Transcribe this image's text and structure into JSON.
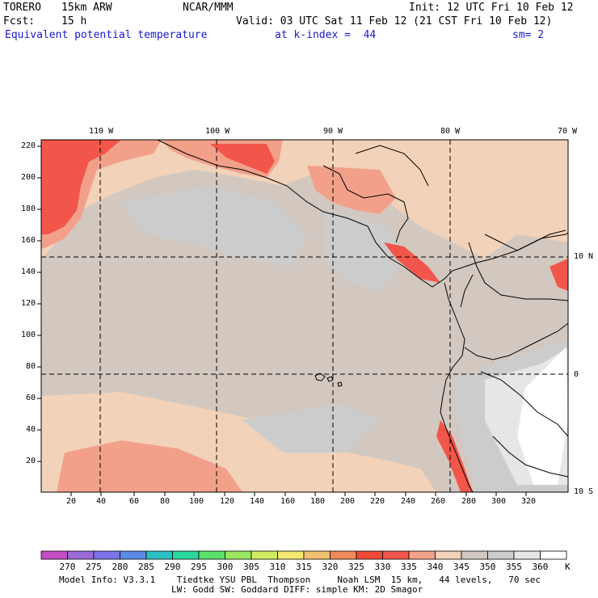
{
  "header": {
    "model": "TORERO",
    "resolution": "15km ARW",
    "org": "NCAR/MMM",
    "init": "Init: 12 UTC Fri 10 Feb 12",
    "fcst_label": "Fcst:",
    "fcst_value": "15 h",
    "valid": "Valid: 03 UTC Sat 11 Feb 12 (21 CST Fri 10 Feb 12)",
    "field": "Equivalent potential temperature",
    "level": "at k-index =  44",
    "smoothing": "sm= 2"
  },
  "axes": {
    "top_lon": [
      "110 W",
      "100 W",
      "90 W",
      "80 W",
      "70 W"
    ],
    "right_lat": [
      "10 N",
      "0",
      "10 S"
    ],
    "left_y": [
      "220",
      "200",
      "180",
      "160",
      "140",
      "120",
      "100",
      "80",
      "60",
      "40",
      "20"
    ],
    "bottom_x": [
      "20",
      "40",
      "60",
      "80",
      "100",
      "120",
      "140",
      "160",
      "180",
      "200",
      "220",
      "240",
      "260",
      "280",
      "300",
      "320"
    ]
  },
  "colorbar": {
    "labels": [
      "270",
      "275",
      "280",
      "285",
      "290",
      "295",
      "300",
      "305",
      "310",
      "315",
      "320",
      "325",
      "330",
      "335",
      "340",
      "345",
      "350",
      "355",
      "360"
    ],
    "unit": "K",
    "colors": [
      "#c44ec4",
      "#9a6ad8",
      "#7a74e8",
      "#5a8ae6",
      "#2ac2c2",
      "#2ad8a0",
      "#5ae26a",
      "#9ae860",
      "#d2ec60",
      "#f2e870",
      "#f2c070",
      "#f28a5a",
      "#f24a3a",
      "#f2564a",
      "#f2a08a",
      "#f2d2b8",
      "#d2c8c0",
      "#cccccc",
      "#e6e6e6",
      "#ffffff"
    ]
  },
  "footer": {
    "line1": "Model Info: V3.3.1    Tiedtke YSU PBL  Thompson     Noah LSM  15 km,   44 levels,   70 sec",
    "line2": "LW: Godd SW: Goddard DIFF: simple KM: 2D Smagor"
  }
}
